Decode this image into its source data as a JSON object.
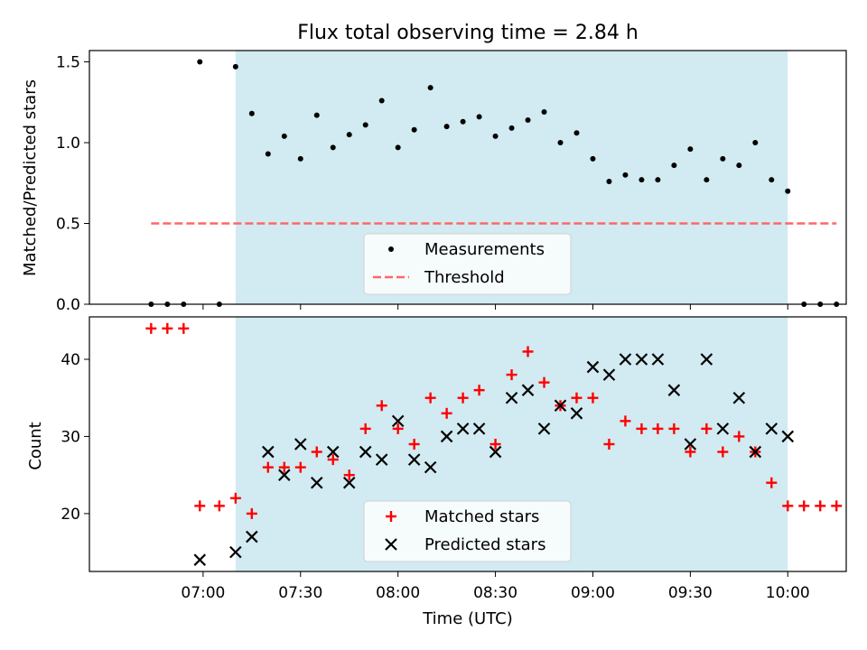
{
  "chart_data": {
    "type": "scatter",
    "title": "Flux total observing time = 2.84 h",
    "xlabel": "Time (UTC)",
    "x_ticks": [
      "07:00",
      "07:30",
      "08:00",
      "08:30",
      "09:00",
      "09:30",
      "10:00"
    ],
    "observing_window": [
      "07:10",
      "10:00"
    ],
    "window_color": "#add8e6",
    "panels": [
      {
        "ylabel": "Matched/Predicted stars",
        "ylim": [
          0,
          1.57
        ],
        "y_ticks": [
          "0.0",
          "0.5",
          "1.0",
          "1.5"
        ],
        "legend": {
          "placement": "lower center",
          "entries": [
            "Measurements",
            "Threshold"
          ]
        },
        "series": [
          {
            "name": "Measurements",
            "marker": "dot",
            "color": "#000000",
            "x": [
              "06:44",
              "06:49",
              "06:54",
              "06:59",
              "07:05",
              "07:10",
              "07:15",
              "07:20",
              "07:25",
              "07:30",
              "07:35",
              "07:40",
              "07:45",
              "07:50",
              "07:55",
              "08:00",
              "08:05",
              "08:10",
              "08:15",
              "08:20",
              "08:25",
              "08:30",
              "08:35",
              "08:40",
              "08:45",
              "08:50",
              "08:55",
              "09:00",
              "09:05",
              "09:10",
              "09:15",
              "09:20",
              "09:25",
              "09:30",
              "09:35",
              "09:40",
              "09:45",
              "09:50",
              "09:55",
              "10:00",
              "10:05",
              "10:10",
              "10:15"
            ],
            "y": [
              0,
              0,
              0,
              1.5,
              0,
              1.47,
              1.18,
              0.93,
              1.04,
              0.9,
              1.17,
              0.97,
              1.05,
              1.11,
              1.26,
              0.97,
              1.08,
              1.34,
              1.1,
              1.13,
              1.16,
              1.04,
              1.09,
              1.14,
              1.19,
              1.0,
              1.06,
              0.9,
              0.76,
              0.8,
              0.77,
              0.77,
              0.86,
              0.96,
              0.77,
              0.9,
              0.86,
              1.0,
              0.77,
              0.7,
              0,
              0,
              0
            ]
          },
          {
            "name": "Threshold",
            "marker": "dashed-line",
            "color": "#ff6666",
            "x": [
              "06:44",
              "10:15"
            ],
            "y": [
              0.5,
              0.5
            ]
          }
        ]
      },
      {
        "ylabel": "Count",
        "ylim": [
          12.5,
          45.5
        ],
        "y_ticks": [
          "20",
          "30",
          "40"
        ],
        "legend": {
          "placement": "lower center",
          "entries": [
            "Matched stars",
            "Predicted stars"
          ]
        },
        "series": [
          {
            "name": "Matched stars",
            "marker": "plus",
            "color": "#ff0000",
            "x": [
              "06:44",
              "06:49",
              "06:54",
              "06:59",
              "07:05",
              "07:10",
              "07:15",
              "07:20",
              "07:25",
              "07:30",
              "07:35",
              "07:40",
              "07:45",
              "07:50",
              "07:55",
              "08:00",
              "08:05",
              "08:10",
              "08:15",
              "08:20",
              "08:25",
              "08:30",
              "08:35",
              "08:40",
              "08:45",
              "08:50",
              "08:55",
              "09:00",
              "09:05",
              "09:10",
              "09:15",
              "09:20",
              "09:25",
              "09:30",
              "09:35",
              "09:40",
              "09:45",
              "09:50",
              "09:55",
              "10:00",
              "10:05",
              "10:10",
              "10:15"
            ],
            "y": [
              44,
              44,
              44,
              21,
              21,
              22,
              20,
              26,
              26,
              26,
              28,
              27,
              25,
              31,
              34,
              31,
              29,
              35,
              33,
              35,
              36,
              29,
              38,
              41,
              37,
              34,
              35,
              35,
              29,
              32,
              31,
              31,
              31,
              28,
              31,
              28,
              30,
              28,
              24,
              21,
              21,
              21,
              21
            ]
          },
          {
            "name": "Predicted stars",
            "marker": "x",
            "color": "#000000",
            "x": [
              "06:59",
              "07:10",
              "07:15",
              "07:20",
              "07:25",
              "07:30",
              "07:35",
              "07:40",
              "07:45",
              "07:50",
              "07:55",
              "08:00",
              "08:05",
              "08:10",
              "08:15",
              "08:20",
              "08:25",
              "08:30",
              "08:35",
              "08:40",
              "08:45",
              "08:50",
              "08:55",
              "09:00",
              "09:05",
              "09:10",
              "09:15",
              "09:20",
              "09:25",
              "09:30",
              "09:35",
              "09:40",
              "09:45",
              "09:50",
              "09:55",
              "10:00"
            ],
            "y": [
              14,
              15,
              17,
              28,
              25,
              29,
              24,
              28,
              24,
              28,
              27,
              32,
              27,
              26,
              30,
              31,
              31,
              28,
              35,
              36,
              31,
              34,
              33,
              39,
              38,
              40,
              40,
              40,
              36,
              29,
              40,
              31,
              35,
              28,
              31,
              30
            ]
          }
        ]
      }
    ]
  }
}
